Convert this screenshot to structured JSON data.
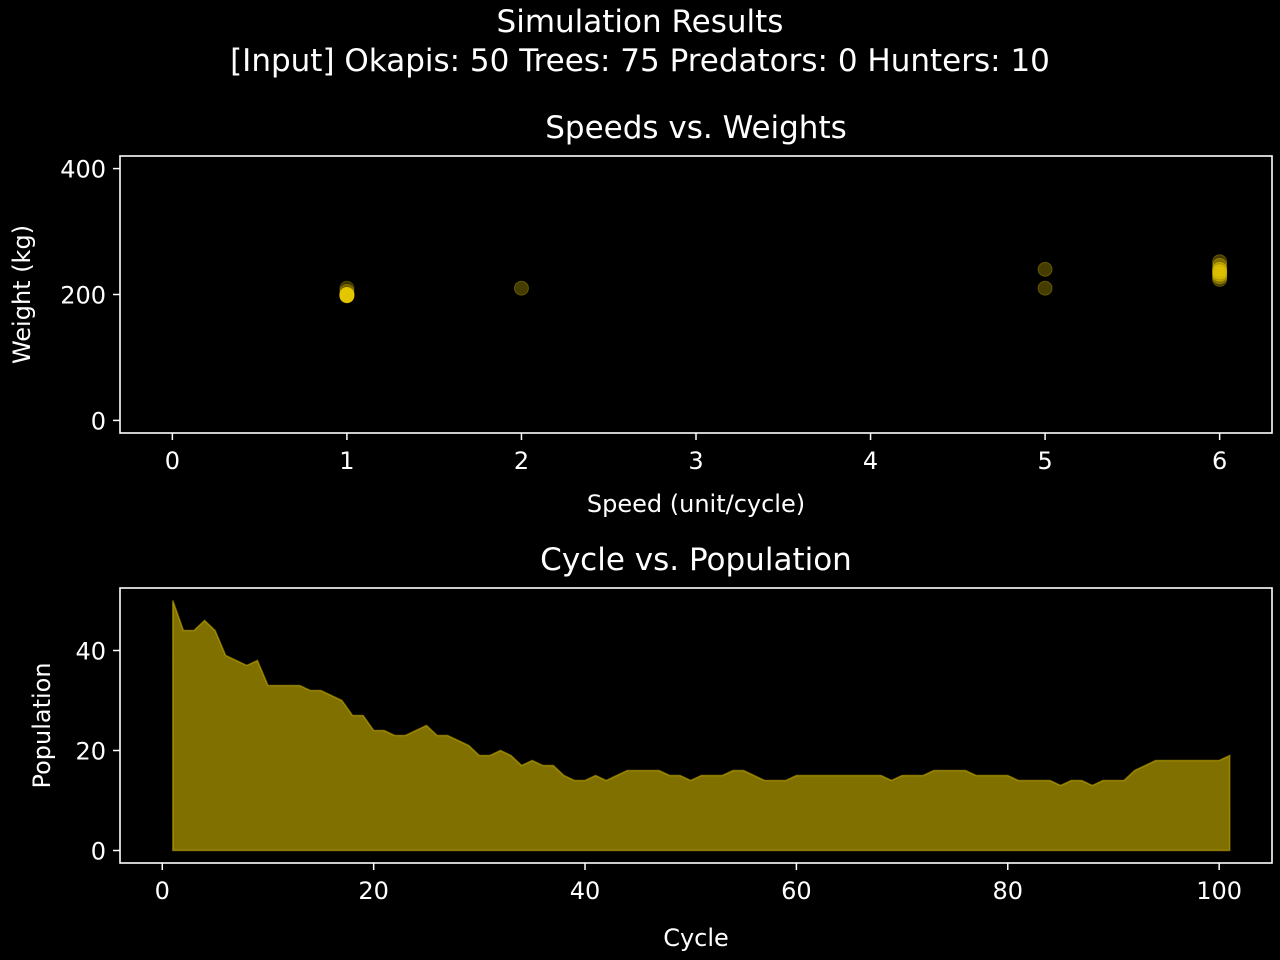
{
  "figure": {
    "title": "Simulation Results",
    "subtitle": "[Input] Okapis: 50    Trees: 75    Predators: 0    Hunters: 10",
    "background": "#000000",
    "foreground": "#ffffff",
    "accent": "#e6c800"
  },
  "chart_data": [
    {
      "type": "scatter",
      "title": "Speeds vs. Weights",
      "xlabel": "Speed (unit/cycle)",
      "ylabel": "Weight (kg)",
      "xlim": [
        -0.3,
        6.3
      ],
      "ylim": [
        -20,
        420
      ],
      "xticks": [
        0,
        1,
        2,
        3,
        4,
        5,
        6
      ],
      "yticks": [
        0,
        200,
        400
      ],
      "grid": false,
      "color": "#e6c800",
      "points": [
        {
          "x": 1,
          "y": 210,
          "alpha": 0.25
        },
        {
          "x": 1,
          "y": 205,
          "alpha": 0.3
        },
        {
          "x": 1,
          "y": 200,
          "alpha": 0.9
        },
        {
          "x": 1,
          "y": 198,
          "alpha": 0.9
        },
        {
          "x": 2,
          "y": 210,
          "alpha": 0.3
        },
        {
          "x": 5,
          "y": 240,
          "alpha": 0.3
        },
        {
          "x": 5,
          "y": 210,
          "alpha": 0.3
        },
        {
          "x": 6,
          "y": 252,
          "alpha": 0.3
        },
        {
          "x": 6,
          "y": 246,
          "alpha": 0.35
        },
        {
          "x": 6,
          "y": 240,
          "alpha": 0.5
        },
        {
          "x": 6,
          "y": 236,
          "alpha": 0.6
        },
        {
          "x": 6,
          "y": 232,
          "alpha": 0.5
        },
        {
          "x": 6,
          "y": 228,
          "alpha": 0.35
        },
        {
          "x": 6,
          "y": 224,
          "alpha": 0.3
        }
      ]
    },
    {
      "type": "area",
      "title": "Cycle vs. Population",
      "xlabel": "Cycle",
      "ylabel": "Population",
      "xlim": [
        -4,
        105
      ],
      "ylim": [
        -2.5,
        52.5
      ],
      "xticks": [
        0,
        20,
        40,
        60,
        80,
        100
      ],
      "yticks": [
        0,
        20,
        40
      ],
      "grid": false,
      "color": "#e6c800",
      "fill_color": "#807000",
      "x_start": 1,
      "values": [
        50,
        44,
        44,
        46,
        44,
        39,
        38,
        37,
        38,
        33,
        33,
        33,
        33,
        32,
        32,
        31,
        30,
        27,
        27,
        24,
        24,
        23,
        23,
        24,
        25,
        23,
        23,
        22,
        21,
        19,
        19,
        20,
        19,
        17,
        18,
        17,
        17,
        15,
        14,
        14,
        15,
        14,
        15,
        16,
        16,
        16,
        16,
        15,
        15,
        14,
        15,
        15,
        15,
        16,
        16,
        15,
        14,
        14,
        14,
        15,
        15,
        15,
        15,
        15,
        15,
        15,
        15,
        15,
        14,
        15,
        15,
        15,
        16,
        16,
        16,
        16,
        15,
        15,
        15,
        15,
        14,
        14,
        14,
        14,
        13,
        14,
        14,
        13,
        14,
        14,
        14,
        16,
        17,
        18,
        18,
        18,
        18,
        18,
        18,
        18,
        19
      ]
    }
  ]
}
